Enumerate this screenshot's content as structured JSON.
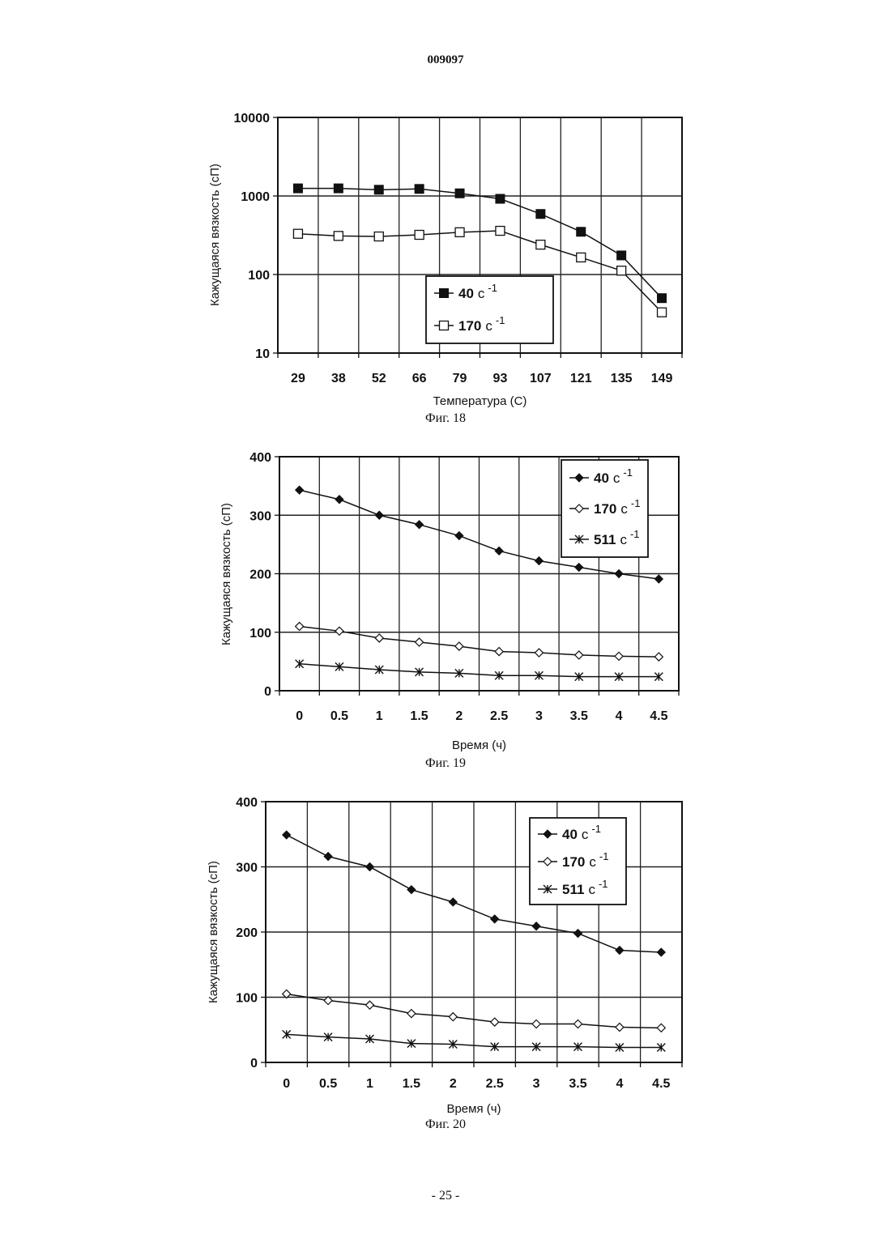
{
  "page": {
    "number": "009097",
    "footer": "- 25 -"
  },
  "chart_data": [
    {
      "id": "fig18",
      "type": "line",
      "caption": "Фиг. 18",
      "title": "",
      "xlabel": "Температура (С)",
      "ylabel": "Кажущаяся вязкость (сП)",
      "yscale": "log",
      "ylim": [
        10,
        10000
      ],
      "yticks": [
        "10",
        "100",
        "1000",
        "10000"
      ],
      "grid": true,
      "legend_position": "bottom-right",
      "categories": [
        "29",
        "38",
        "52",
        "66",
        "79",
        "93",
        "107",
        "121",
        "135",
        "149"
      ],
      "series": [
        {
          "name": "40",
          "unit": "с",
          "exp": "-1",
          "marker": "square-filled",
          "values": [
            1250,
            1250,
            1200,
            1230,
            1080,
            920,
            590,
            350,
            175,
            50
          ]
        },
        {
          "name": "170",
          "unit": "с",
          "exp": "-1",
          "marker": "square-open",
          "values": [
            330,
            310,
            305,
            320,
            345,
            360,
            240,
            165,
            112,
            33
          ]
        }
      ]
    },
    {
      "id": "fig19",
      "type": "line",
      "caption": "Фиг. 19",
      "title": "",
      "xlabel": "Время (ч)",
      "ylabel": "Кажущаяся вязкость (сП)",
      "yscale": "linear",
      "ylim": [
        0,
        400
      ],
      "yticks": [
        "0",
        "100",
        "200",
        "300",
        "400"
      ],
      "grid": true,
      "legend_position": "top-right",
      "categories": [
        "0",
        "0.5",
        "1",
        "1.5",
        "2",
        "2.5",
        "3",
        "3.5",
        "4",
        "4.5"
      ],
      "series": [
        {
          "name": "40",
          "unit": "с",
          "exp": "-1",
          "marker": "diamond-filled",
          "values": [
            343,
            327,
            300,
            284,
            265,
            239,
            222,
            211,
            200,
            191
          ]
        },
        {
          "name": "170",
          "unit": "с",
          "exp": "-1",
          "marker": "diamond-open",
          "values": [
            110,
            102,
            90,
            83,
            76,
            67,
            65,
            61,
            59,
            58
          ]
        },
        {
          "name": "511",
          "unit": "с",
          "exp": "-1",
          "marker": "asterisk",
          "values": [
            46,
            41,
            36,
            32,
            30,
            26,
            26,
            24,
            24,
            24
          ]
        }
      ]
    },
    {
      "id": "fig20",
      "type": "line",
      "caption": "Фиг. 20",
      "title": "",
      "xlabel": "Время (ч)",
      "ylabel": "Кажущаяся вязкость (сП)",
      "yscale": "linear",
      "ylim": [
        0,
        400
      ],
      "yticks": [
        "0",
        "100",
        "200",
        "300",
        "400"
      ],
      "grid": true,
      "legend_position": "top-right",
      "categories": [
        "0",
        "0.5",
        "1",
        "1.5",
        "2",
        "2.5",
        "3",
        "3.5",
        "4",
        "4.5"
      ],
      "series": [
        {
          "name": "40",
          "unit": "с",
          "exp": "-1",
          "marker": "diamond-filled",
          "values": [
            349,
            316,
            300,
            265,
            246,
            220,
            209,
            198,
            172,
            169
          ]
        },
        {
          "name": "170",
          "unit": "с",
          "exp": "-1",
          "marker": "diamond-open",
          "values": [
            105,
            95,
            88,
            75,
            70,
            62,
            59,
            59,
            54,
            53
          ]
        },
        {
          "name": "511",
          "unit": "с",
          "exp": "-1",
          "marker": "asterisk",
          "values": [
            43,
            39,
            36,
            29,
            28,
            24,
            24,
            24,
            23,
            23
          ]
        }
      ]
    }
  ]
}
